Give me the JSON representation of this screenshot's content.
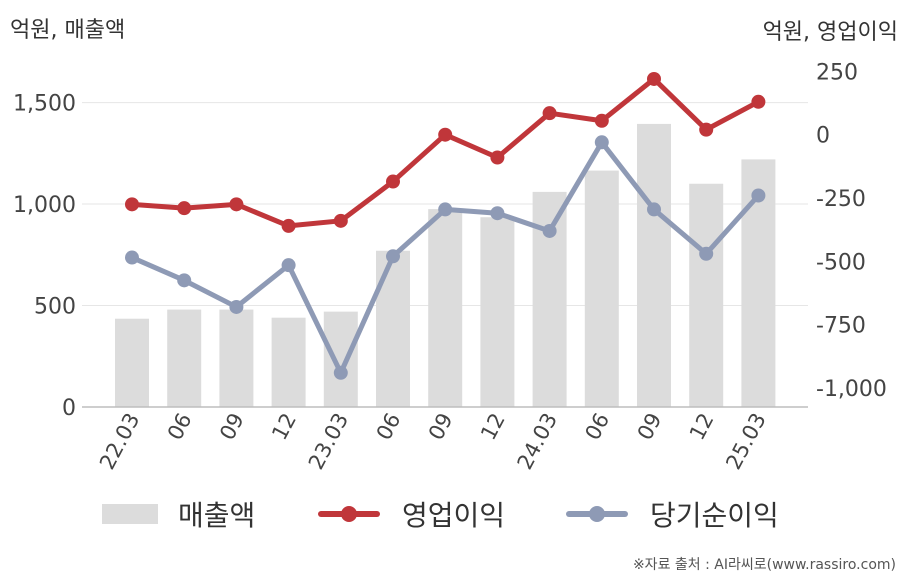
{
  "units": {
    "left": "억원, 매출액",
    "right": "억원, 영업이익"
  },
  "source": "※자료 출처 : AI라씨로(www.rassiro.com)",
  "chart_data": {
    "type": "bar",
    "categories": [
      "22.03",
      "06",
      "09",
      "12",
      "23.03",
      "06",
      "09",
      "12",
      "24.03",
      "06",
      "09",
      "12",
      "25.03"
    ],
    "ylim_left": [
      0,
      1700
    ],
    "yticks_left": [
      0,
      500,
      1000,
      1500
    ],
    "yticks_left_labels": [
      "0",
      "500",
      "1,000",
      "1,500"
    ],
    "ylim_right": [
      -1075,
      287
    ],
    "yticks_right": [
      -1000,
      -750,
      -500,
      -250,
      0,
      250
    ],
    "yticks_right_labels": [
      "-1,000",
      "-750",
      "-500",
      "-250",
      "0",
      "250"
    ],
    "grid": true,
    "legend_position": "bottom",
    "series": [
      {
        "name": "매출액",
        "kind": "bar",
        "axis": "left",
        "color": "#dcdcdc",
        "values": [
          435,
          480,
          480,
          440,
          470,
          770,
          975,
          935,
          1060,
          1165,
          1395,
          1100,
          1220
        ]
      },
      {
        "name": "영업이익",
        "kind": "line",
        "axis": "right",
        "color": "#c0363a",
        "values": [
          -275,
          -290,
          -275,
          -360,
          -340,
          -185,
          0,
          -90,
          85,
          55,
          220,
          20,
          130
        ]
      },
      {
        "name": "당기순이익",
        "kind": "line",
        "axis": "right",
        "color": "#8e9ab5",
        "values": [
          -485,
          -575,
          -680,
          -515,
          -940,
          -480,
          -295,
          -310,
          -380,
          -30,
          -295,
          -470,
          -240
        ]
      }
    ]
  }
}
